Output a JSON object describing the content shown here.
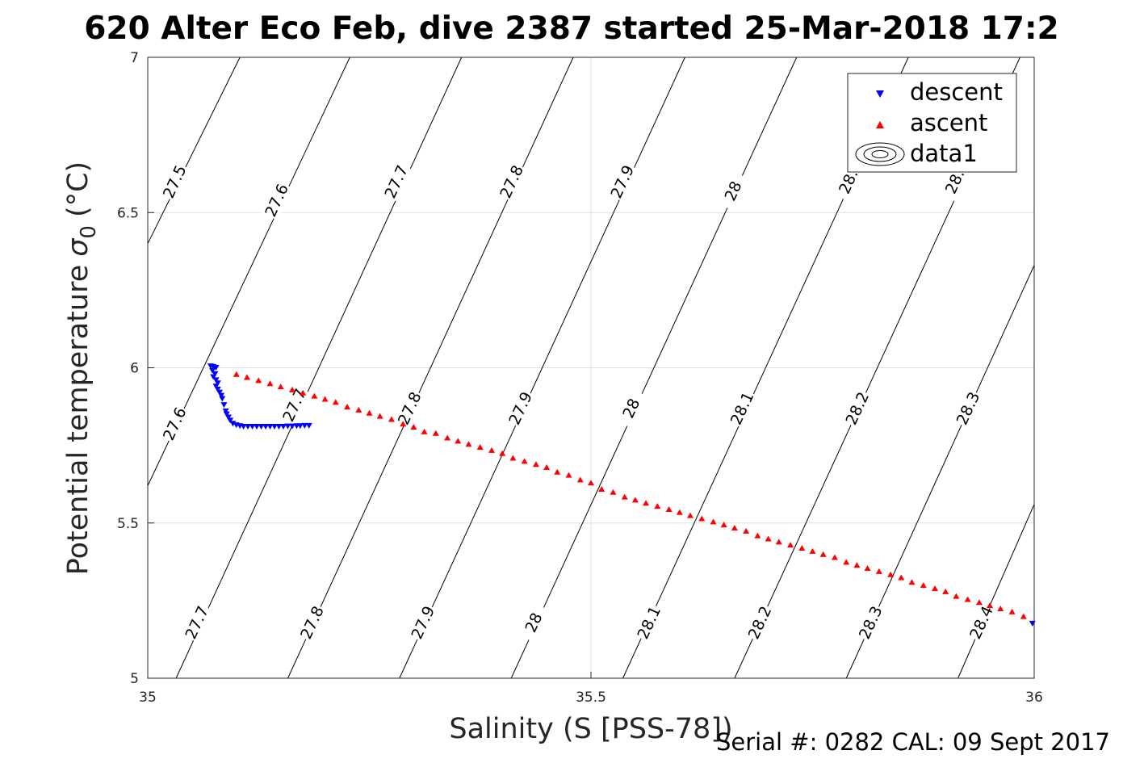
{
  "title": "620 Alter Eco Feb, dive 2387 started 25-Mar-2018 17:2",
  "footer": "Serial #: 0282  CAL: 09 Sept 2017",
  "chart_data": {
    "type": "scatter",
    "xlabel": "Salinity (S [PSS-78])",
    "ylabel": "Potential temperature",
    "ylabel_symbol": "σ",
    "ylabel_subscript": "0",
    "ylabel_unit": "(°C)",
    "xlim": [
      35,
      36
    ],
    "ylim": [
      5,
      7
    ],
    "xticks": [
      35,
      35.5,
      36
    ],
    "xtick_labels": [
      "35",
      "35.5",
      "36"
    ],
    "yticks": [
      5,
      5.5,
      6,
      6.5,
      7
    ],
    "ytick_labels": [
      "5",
      "5.5",
      "6",
      "6.5",
      "7"
    ],
    "grid": true,
    "legend": {
      "position": "top-right",
      "entries": [
        "descent",
        "ascent",
        "data1"
      ]
    },
    "colors": {
      "descent": "#0000ff",
      "ascent": "#ff0000",
      "contour": "#000000",
      "grid": "#e0e0e0"
    },
    "contours": {
      "name": "data1",
      "levels": [
        27.5,
        27.6,
        27.7,
        27.8,
        27.9,
        28.0,
        28.1,
        28.2,
        28.3,
        28.4
      ],
      "lines": [
        {
          "level": 27.5,
          "points": [
            [
              35.0,
              6.4
            ],
            [
              35.104,
              7.0
            ]
          ]
        },
        {
          "level": 27.6,
          "points": [
            [
              35.0,
              5.62
            ],
            [
              35.228,
              7.0
            ]
          ]
        },
        {
          "level": 27.7,
          "points": [
            [
              35.032,
              5.0
            ],
            [
              35.354,
              7.0
            ]
          ]
        },
        {
          "level": 27.8,
          "points": [
            [
              35.158,
              5.0
            ],
            [
              35.48,
              7.0
            ]
          ]
        },
        {
          "level": 27.9,
          "points": [
            [
              35.284,
              5.0
            ],
            [
              35.606,
              7.0
            ]
          ]
        },
        {
          "level": 28.0,
          "points": [
            [
              35.41,
              5.0
            ],
            [
              35.732,
              7.0
            ]
          ]
        },
        {
          "level": 28.1,
          "points": [
            [
              35.536,
              5.0
            ],
            [
              35.858,
              7.0
            ]
          ]
        },
        {
          "level": 28.2,
          "points": [
            [
              35.662,
              5.0
            ],
            [
              35.984,
              7.0
            ]
          ]
        },
        {
          "level": 28.3,
          "points": [
            [
              35.788,
              5.0
            ],
            [
              36.0,
              6.33
            ]
          ]
        },
        {
          "level": 28.4,
          "points": [
            [
              35.914,
              5.0
            ],
            [
              36.0,
              5.56
            ]
          ]
        }
      ],
      "labels": [
        {
          "text": "27.5",
          "x": 35.03,
          "y": 6.6
        },
        {
          "text": "27.6",
          "x": 35.145,
          "y": 6.54
        },
        {
          "text": "27.7",
          "x": 35.28,
          "y": 6.6
        },
        {
          "text": "27.8",
          "x": 35.41,
          "y": 6.6
        },
        {
          "text": "27.9",
          "x": 35.535,
          "y": 6.6
        },
        {
          "text": "28",
          "x": 35.66,
          "y": 6.57
        },
        {
          "text": "28.",
          "x": 35.79,
          "y": 6.6
        },
        {
          "text": "28.",
          "x": 35.91,
          "y": 6.6
        },
        {
          "text": "27.6",
          "x": 35.03,
          "y": 5.82
        },
        {
          "text": "27.7",
          "x": 35.165,
          "y": 5.88
        },
        {
          "text": "27.8",
          "x": 35.295,
          "y": 5.87
        },
        {
          "text": "27.9",
          "x": 35.42,
          "y": 5.87
        },
        {
          "text": "28",
          "x": 35.545,
          "y": 5.87
        },
        {
          "text": "28.1",
          "x": 35.67,
          "y": 5.87
        },
        {
          "text": "28.2",
          "x": 35.8,
          "y": 5.87
        },
        {
          "text": "28.3",
          "x": 35.925,
          "y": 5.87
        },
        {
          "text": "27.7",
          "x": 35.055,
          "y": 5.18
        },
        {
          "text": "27.8",
          "x": 35.185,
          "y": 5.18
        },
        {
          "text": "27.9",
          "x": 35.31,
          "y": 5.18
        },
        {
          "text": "28",
          "x": 35.435,
          "y": 5.18
        },
        {
          "text": "28.1",
          "x": 35.565,
          "y": 5.18
        },
        {
          "text": "28.2",
          "x": 35.69,
          "y": 5.18
        },
        {
          "text": "28.3",
          "x": 35.815,
          "y": 5.18
        },
        {
          "text": "28.4",
          "x": 35.94,
          "y": 5.18
        }
      ]
    },
    "series": [
      {
        "name": "descent",
        "marker": "triangle-down",
        "points": [
          [
            35.071,
            6.005
          ],
          [
            35.074,
            6.003
          ],
          [
            35.077,
            6.0
          ],
          [
            35.073,
            5.99
          ],
          [
            35.076,
            5.98
          ],
          [
            35.074,
            5.97
          ],
          [
            35.077,
            5.96
          ],
          [
            35.079,
            5.95
          ],
          [
            35.077,
            5.94
          ],
          [
            35.079,
            5.93
          ],
          [
            35.081,
            5.92
          ],
          [
            35.083,
            5.91
          ],
          [
            35.084,
            5.9
          ],
          [
            35.086,
            5.88
          ],
          [
            35.088,
            5.86
          ],
          [
            35.089,
            5.85
          ],
          [
            35.091,
            5.84
          ],
          [
            35.093,
            5.83
          ],
          [
            35.096,
            5.82
          ],
          [
            35.1,
            5.815
          ],
          [
            35.104,
            5.812
          ],
          [
            35.108,
            5.81
          ],
          [
            35.113,
            5.81
          ],
          [
            35.118,
            5.81
          ],
          [
            35.123,
            5.81
          ],
          [
            35.128,
            5.81
          ],
          [
            35.133,
            5.81
          ],
          [
            35.138,
            5.81
          ],
          [
            35.143,
            5.81
          ],
          [
            35.148,
            5.81
          ],
          [
            35.153,
            5.81
          ],
          [
            35.158,
            5.811
          ],
          [
            35.163,
            5.811
          ],
          [
            35.168,
            5.812
          ],
          [
            35.172,
            5.812
          ],
          [
            35.177,
            5.813
          ],
          [
            35.182,
            5.813
          ],
          [
            35.998,
            5.176
          ]
        ]
      },
      {
        "name": "ascent",
        "marker": "triangle-up",
        "points": [
          [
            35.1,
            5.98
          ],
          [
            35.112,
            5.97
          ],
          [
            35.125,
            5.96
          ],
          [
            35.138,
            5.95
          ],
          [
            35.15,
            5.94
          ],
          [
            35.163,
            5.93
          ],
          [
            35.175,
            5.92
          ],
          [
            35.188,
            5.91
          ],
          [
            35.2,
            5.9
          ],
          [
            35.212,
            5.89
          ],
          [
            35.225,
            5.875
          ],
          [
            35.238,
            5.865
          ],
          [
            35.25,
            5.855
          ],
          [
            35.262,
            5.845
          ],
          [
            35.275,
            5.835
          ],
          [
            35.288,
            5.82
          ],
          [
            35.3,
            5.81
          ],
          [
            35.312,
            5.795
          ],
          [
            35.325,
            5.79
          ],
          [
            35.338,
            5.775
          ],
          [
            35.35,
            5.765
          ],
          [
            35.362,
            5.755
          ],
          [
            35.375,
            5.745
          ],
          [
            35.388,
            5.735
          ],
          [
            35.4,
            5.725
          ],
          [
            35.412,
            5.71
          ],
          [
            35.425,
            5.7
          ],
          [
            35.438,
            5.69
          ],
          [
            35.45,
            5.68
          ],
          [
            35.462,
            5.665
          ],
          [
            35.475,
            5.655
          ],
          [
            35.488,
            5.64
          ],
          [
            35.5,
            5.63
          ],
          [
            35.512,
            5.61
          ],
          [
            35.525,
            5.6
          ],
          [
            35.538,
            5.585
          ],
          [
            35.55,
            5.575
          ],
          [
            35.562,
            5.565
          ],
          [
            35.575,
            5.555
          ],
          [
            35.588,
            5.545
          ],
          [
            35.6,
            5.535
          ],
          [
            35.612,
            5.525
          ],
          [
            35.625,
            5.515
          ],
          [
            35.638,
            5.505
          ],
          [
            35.65,
            5.495
          ],
          [
            35.662,
            5.485
          ],
          [
            35.675,
            5.475
          ],
          [
            35.688,
            5.46
          ],
          [
            35.7,
            5.45
          ],
          [
            35.712,
            5.44
          ],
          [
            35.725,
            5.43
          ],
          [
            35.738,
            5.42
          ],
          [
            35.75,
            5.41
          ],
          [
            35.762,
            5.4
          ],
          [
            35.775,
            5.39
          ],
          [
            35.788,
            5.375
          ],
          [
            35.8,
            5.365
          ],
          [
            35.812,
            5.355
          ],
          [
            35.825,
            5.345
          ],
          [
            35.838,
            5.335
          ],
          [
            35.85,
            5.325
          ],
          [
            35.862,
            5.31
          ],
          [
            35.875,
            5.3
          ],
          [
            35.888,
            5.29
          ],
          [
            35.9,
            5.28
          ],
          [
            35.912,
            5.265
          ],
          [
            35.925,
            5.255
          ],
          [
            35.938,
            5.245
          ],
          [
            35.95,
            5.235
          ],
          [
            35.962,
            5.225
          ],
          [
            35.975,
            5.215
          ],
          [
            35.988,
            5.2
          ]
        ]
      }
    ]
  }
}
